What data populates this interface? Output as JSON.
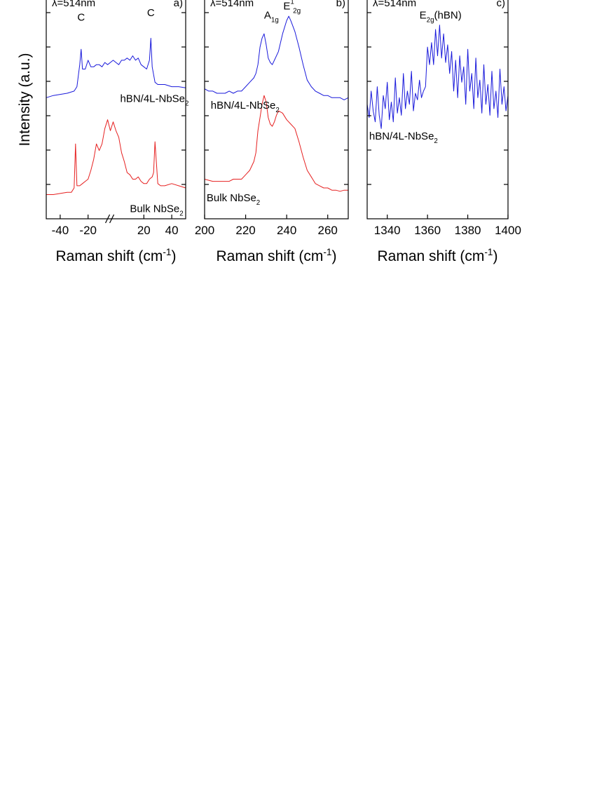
{
  "ylabel": "Intensity (a.u.)",
  "colors": {
    "hbn_sample": "#1a1adb",
    "bulk": "#e62020"
  },
  "chart_data": [
    {
      "type": "line",
      "panel": "a)",
      "wavelength": "λ=514nm",
      "xlabel": "Raman shift (cm",
      "xlabel_sup": "-1",
      "xlabel_tail": ")",
      "xlim": [
        -50,
        50
      ],
      "x_ticks": [
        -40,
        -20,
        20,
        40
      ],
      "x_tick_labels": [
        "-40",
        "-20",
        "20",
        "40"
      ],
      "axis_break": true,
      "ylim": [
        0,
        1
      ],
      "peak_labels": [
        {
          "text": "C",
          "x": -25,
          "y": 0.9
        },
        {
          "text": "C",
          "x": 25,
          "y": 0.92
        }
      ],
      "series_labels": [
        {
          "text": "hBN/4L-NbSe",
          "sub": "2",
          "x": 3,
          "y": 0.53,
          "color": "#1a1adb"
        },
        {
          "text": "Bulk NbSe",
          "sub": "2",
          "x": 10,
          "y": 0.03,
          "color": "#e62020"
        }
      ],
      "series": [
        {
          "color": "#1a1adb",
          "x": [
            -50,
            -45,
            -40,
            -35,
            -30,
            -28,
            -26,
            -25,
            -24,
            -22,
            -20,
            -18,
            -16,
            -14,
            -12,
            -10,
            -8,
            -6,
            -4,
            -2,
            0,
            2,
            4,
            6,
            8,
            10,
            12,
            14,
            16,
            18,
            20,
            22,
            24,
            25,
            26,
            28,
            30,
            35,
            40,
            45,
            50
          ],
          "y": [
            0.55,
            0.56,
            0.565,
            0.57,
            0.58,
            0.6,
            0.7,
            0.77,
            0.68,
            0.68,
            0.72,
            0.69,
            0.69,
            0.7,
            0.7,
            0.69,
            0.71,
            0.7,
            0.71,
            0.72,
            0.71,
            0.7,
            0.72,
            0.72,
            0.73,
            0.72,
            0.74,
            0.72,
            0.73,
            0.7,
            0.69,
            0.68,
            0.72,
            0.82,
            0.69,
            0.62,
            0.61,
            0.61,
            0.6,
            0.6,
            0.595
          ]
        },
        {
          "color": "#e62020",
          "x": [
            -50,
            -45,
            -40,
            -35,
            -32,
            -30,
            -29,
            -28,
            -26,
            -24,
            -22,
            -20,
            -18,
            -16,
            -14,
            -12,
            -10,
            -8,
            -6,
            -4,
            -2,
            0,
            2,
            4,
            6,
            8,
            10,
            12,
            14,
            16,
            18,
            20,
            22,
            24,
            26,
            27,
            28,
            30,
            32,
            35,
            40,
            45,
            50
          ],
          "y": [
            0.11,
            0.11,
            0.115,
            0.12,
            0.12,
            0.14,
            0.34,
            0.15,
            0.15,
            0.16,
            0.17,
            0.18,
            0.22,
            0.27,
            0.34,
            0.31,
            0.34,
            0.41,
            0.45,
            0.4,
            0.44,
            0.4,
            0.37,
            0.3,
            0.26,
            0.21,
            0.2,
            0.18,
            0.18,
            0.19,
            0.17,
            0.16,
            0.16,
            0.18,
            0.19,
            0.21,
            0.35,
            0.16,
            0.15,
            0.15,
            0.16,
            0.15,
            0.14
          ]
        }
      ]
    },
    {
      "type": "line",
      "panel": "b)",
      "wavelength": "λ=514nm",
      "xlabel": "Raman shift (cm",
      "xlabel_sup": "-1",
      "xlabel_tail": ")",
      "xlim": [
        200,
        270
      ],
      "x_ticks": [
        200,
        220,
        240,
        260
      ],
      "x_tick_labels": [
        "200",
        "220",
        "240",
        "260"
      ],
      "ylim": [
        0,
        1
      ],
      "peak_labels": [
        {
          "text": "A",
          "sub": "1g",
          "x": 229,
          "y": 0.91
        },
        {
          "text": "E",
          "sub": "2g",
          "sup": "1",
          "x": 241,
          "y": 0.95
        }
      ],
      "series_labels": [
        {
          "text": "hBN/4L-NbSe",
          "sub": "2",
          "x": 203,
          "y": 0.5,
          "color": "#1a1adb"
        },
        {
          "text": "Bulk NbSe",
          "sub": "2",
          "x": 201,
          "y": 0.08,
          "color": "#e62020"
        }
      ],
      "series": [
        {
          "color": "#1a1adb",
          "x": [
            200,
            202,
            204,
            206,
            208,
            210,
            212,
            214,
            216,
            218,
            220,
            222,
            224,
            225,
            226,
            227,
            228,
            229,
            230,
            231,
            232,
            233,
            234,
            236,
            238,
            240,
            241,
            242,
            244,
            246,
            248,
            250,
            252,
            254,
            256,
            258,
            260,
            262,
            264,
            266,
            268,
            270
          ],
          "y": [
            0.59,
            0.58,
            0.58,
            0.57,
            0.57,
            0.57,
            0.58,
            0.57,
            0.58,
            0.58,
            0.6,
            0.62,
            0.64,
            0.66,
            0.7,
            0.78,
            0.82,
            0.84,
            0.79,
            0.73,
            0.71,
            0.7,
            0.72,
            0.76,
            0.84,
            0.9,
            0.92,
            0.9,
            0.85,
            0.78,
            0.7,
            0.63,
            0.6,
            0.58,
            0.57,
            0.56,
            0.56,
            0.55,
            0.55,
            0.55,
            0.54,
            0.55
          ]
        },
        {
          "color": "#e62020",
          "x": [
            200,
            202,
            204,
            206,
            208,
            210,
            212,
            214,
            216,
            218,
            220,
            222,
            224,
            225,
            226,
            227,
            228,
            229,
            230,
            231,
            232,
            233,
            234,
            235,
            236,
            238,
            240,
            242,
            244,
            246,
            248,
            250,
            252,
            254,
            256,
            258,
            260,
            262,
            264,
            266,
            268,
            270
          ],
          "y": [
            0.18,
            0.175,
            0.17,
            0.17,
            0.17,
            0.17,
            0.17,
            0.18,
            0.18,
            0.18,
            0.2,
            0.22,
            0.26,
            0.3,
            0.4,
            0.46,
            0.52,
            0.56,
            0.53,
            0.46,
            0.43,
            0.42,
            0.44,
            0.47,
            0.49,
            0.48,
            0.45,
            0.43,
            0.41,
            0.35,
            0.28,
            0.22,
            0.19,
            0.16,
            0.15,
            0.14,
            0.14,
            0.13,
            0.13,
            0.125,
            0.13,
            0.13
          ]
        }
      ]
    },
    {
      "type": "line",
      "panel": "c)",
      "wavelength": "λ=514nm",
      "xlabel": "Raman shift (cm",
      "xlabel_sup": "-1",
      "xlabel_tail": ")",
      "xlim": [
        1330,
        1400
      ],
      "x_ticks": [
        1340,
        1360,
        1380,
        1400
      ],
      "x_tick_labels": [
        "1340",
        "1360",
        "1380",
        "1400"
      ],
      "ylim": [
        0,
        1
      ],
      "peak_labels": [
        {
          "text": "E",
          "sub": "2g",
          "tail": "(hBN)",
          "x": 1356,
          "y": 0.91
        }
      ],
      "series_labels": [
        {
          "text": "hBN/4L-NbSe",
          "sub": "2",
          "x": 1331,
          "y": 0.36,
          "color": "#1a1adb"
        }
      ],
      "series": [
        {
          "color": "#1a1adb",
          "x": [
            1330,
            1331,
            1332,
            1333,
            1334,
            1335,
            1336,
            1337,
            1338,
            1339,
            1340,
            1341,
            1342,
            1343,
            1344,
            1345,
            1346,
            1347,
            1348,
            1349,
            1350,
            1351,
            1352,
            1353,
            1354,
            1355,
            1356,
            1357,
            1358,
            1359,
            1360,
            1361,
            1362,
            1363,
            1364,
            1365,
            1366,
            1367,
            1368,
            1369,
            1370,
            1371,
            1372,
            1373,
            1374,
            1375,
            1376,
            1377,
            1378,
            1379,
            1380,
            1381,
            1382,
            1383,
            1384,
            1385,
            1386,
            1387,
            1388,
            1389,
            1390,
            1391,
            1392,
            1393,
            1394,
            1395,
            1396,
            1397,
            1398,
            1399,
            1400
          ],
          "y": [
            0.52,
            0.46,
            0.58,
            0.49,
            0.44,
            0.6,
            0.47,
            0.41,
            0.56,
            0.5,
            0.62,
            0.45,
            0.53,
            0.44,
            0.64,
            0.48,
            0.55,
            0.47,
            0.66,
            0.5,
            0.58,
            0.52,
            0.67,
            0.49,
            0.57,
            0.54,
            0.63,
            0.55,
            0.58,
            0.6,
            0.78,
            0.7,
            0.8,
            0.7,
            0.86,
            0.74,
            0.88,
            0.73,
            0.84,
            0.71,
            0.79,
            0.66,
            0.76,
            0.58,
            0.72,
            0.55,
            0.74,
            0.62,
            0.69,
            0.52,
            0.77,
            0.58,
            0.66,
            0.5,
            0.73,
            0.55,
            0.63,
            0.48,
            0.7,
            0.52,
            0.61,
            0.47,
            0.67,
            0.5,
            0.58,
            0.46,
            0.68,
            0.52,
            0.6,
            0.49,
            0.56
          ]
        }
      ]
    }
  ]
}
